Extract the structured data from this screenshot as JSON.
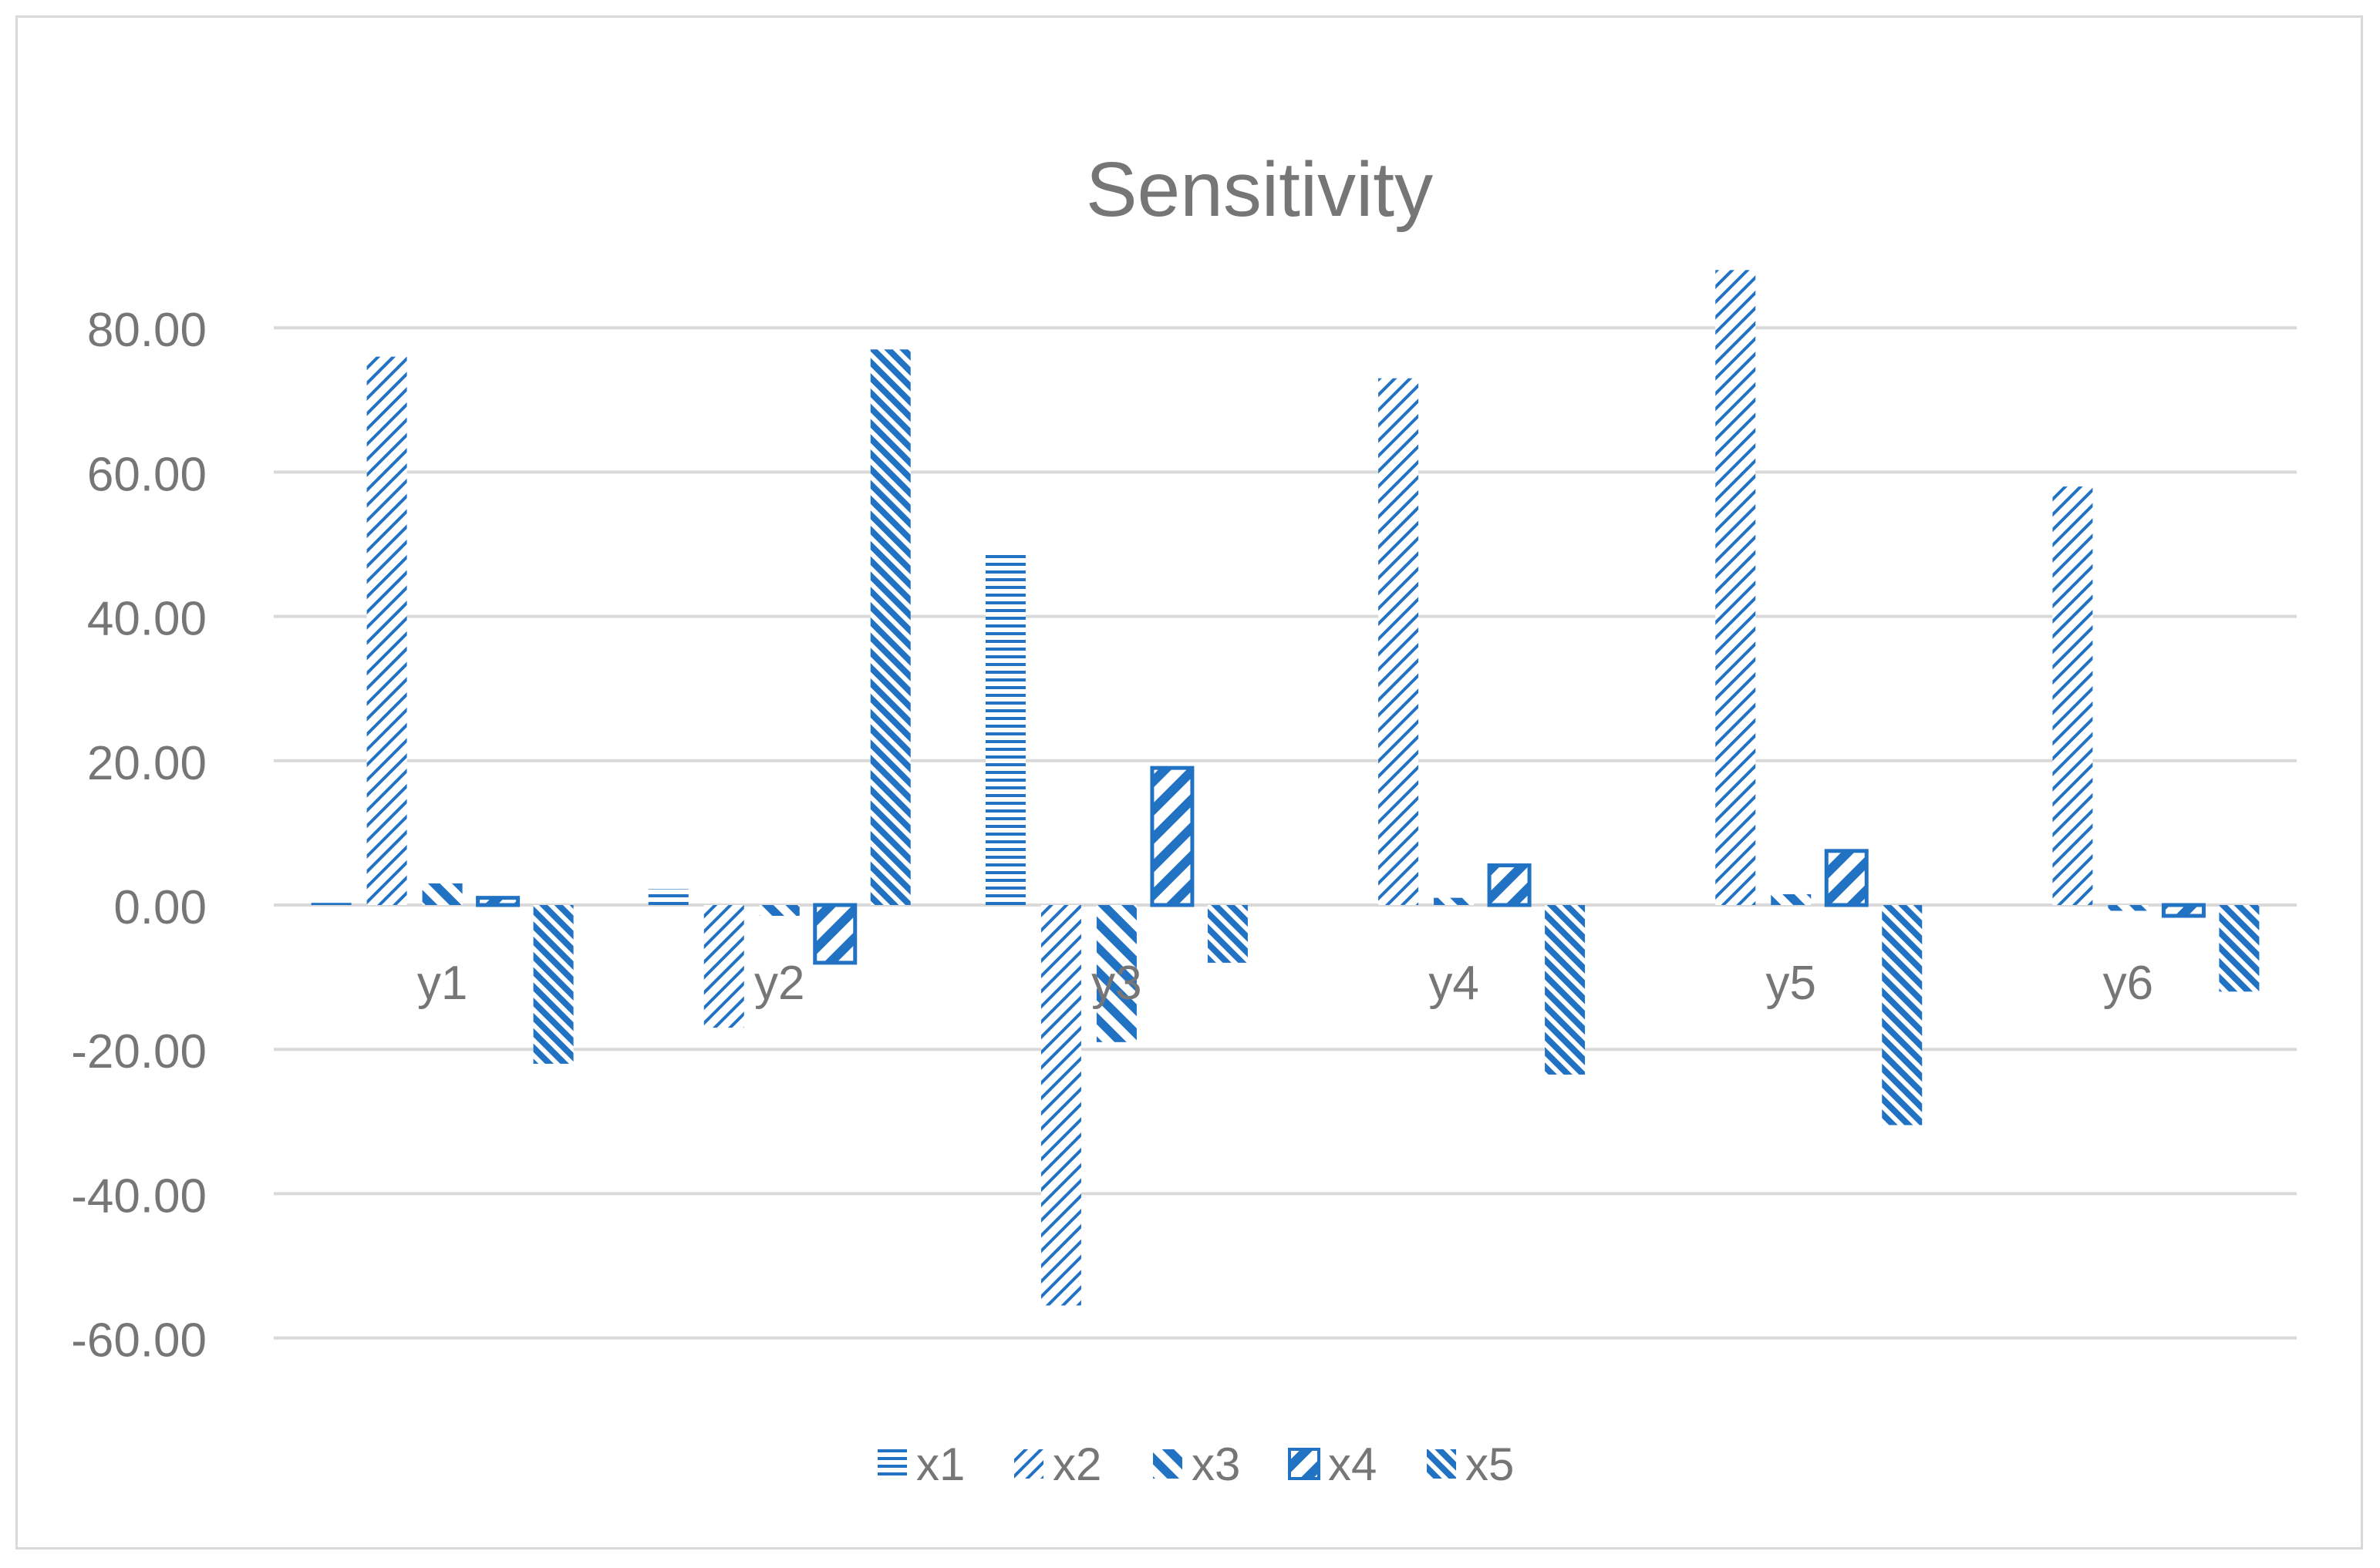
{
  "chart_data": {
    "type": "bar",
    "title": "Sensitivity",
    "xlabel": "",
    "ylabel": "",
    "categories": [
      "y1",
      "y2",
      "y3",
      "y4",
      "y5",
      "y6"
    ],
    "yticks": [
      "80.00",
      "60.00",
      "40.00",
      "20.00",
      "0.00",
      "-20.00",
      "-40.00",
      "-60.00"
    ],
    "ylim": [
      -60,
      80
    ],
    "grid": true,
    "legend_position": "bottom",
    "series": [
      {
        "name": "x1",
        "values": [
          0.3,
          2.2,
          49,
          0,
          0,
          0
        ],
        "pattern": "x1-pattern"
      },
      {
        "name": "x2",
        "values": [
          76,
          -17,
          -55.5,
          73,
          88,
          58
        ],
        "pattern": "x2-pattern"
      },
      {
        "name": "x3",
        "values": [
          3,
          -1.5,
          -19,
          1,
          1.5,
          -0.8
        ],
        "pattern": "x3-pattern"
      },
      {
        "name": "x4",
        "values": [
          1,
          -8,
          19,
          5.5,
          7.5,
          -1.5
        ],
        "pattern": "x4-pattern"
      },
      {
        "name": "x5",
        "values": [
          -22,
          77,
          -8,
          -23.5,
          -30.5,
          -12
        ],
        "pattern": "x5-pattern"
      }
    ],
    "colors": {
      "bar": "#2272c4",
      "grid": "#d9d9d9",
      "text": "#767676",
      "border": "#d9d9d9"
    }
  }
}
